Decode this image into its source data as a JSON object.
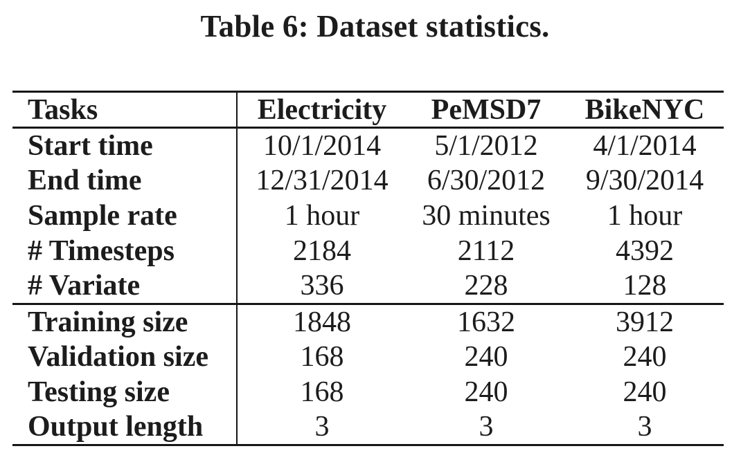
{
  "caption": "Table 6: Dataset statistics.",
  "colors": {
    "background": "#ffffff",
    "text": "#1c1c1c",
    "rule": "#161616"
  },
  "table": {
    "columns": [
      "Tasks",
      "Electricity",
      "PeMSD7",
      "BikeNYC"
    ],
    "sections": [
      {
        "name": "dataset-properties",
        "rows": [
          {
            "label": "Start time",
            "values": [
              "10/1/2014",
              "5/1/2012",
              "4/1/2014"
            ]
          },
          {
            "label": "End time",
            "values": [
              "12/31/2014",
              "6/30/2012",
              "9/30/2014"
            ]
          },
          {
            "label": "Sample rate",
            "values": [
              "1 hour",
              "30 minutes",
              "1 hour"
            ]
          },
          {
            "label": "# Timesteps",
            "values": [
              "2184",
              "2112",
              "4392"
            ]
          },
          {
            "label": "# Variate",
            "values": [
              "336",
              "228",
              "128"
            ]
          }
        ]
      },
      {
        "name": "split-sizes",
        "rows": [
          {
            "label": "Training size",
            "values": [
              "1848",
              "1632",
              "3912"
            ]
          },
          {
            "label": "Validation size",
            "values": [
              "168",
              "240",
              "240"
            ]
          },
          {
            "label": "Testing size",
            "values": [
              "168",
              "240",
              "240"
            ]
          },
          {
            "label": "Output length",
            "values": [
              "3",
              "3",
              "3"
            ]
          }
        ]
      }
    ]
  }
}
